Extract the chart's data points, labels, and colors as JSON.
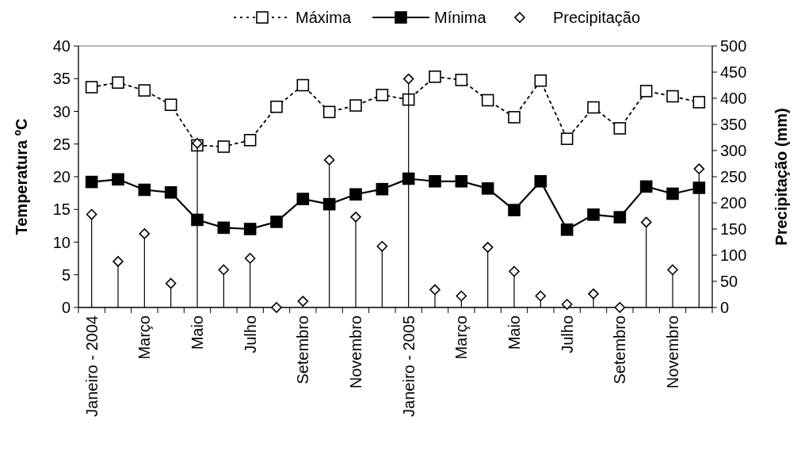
{
  "chart_data": {
    "type": "line",
    "ylabel": "Temperatura ºC",
    "y2label": "Precipitação (mm)",
    "categories": [
      "Janeiro - 2004",
      null,
      "Março",
      null,
      "Maio",
      null,
      "Julho",
      null,
      "Setembro",
      null,
      "Novembro",
      null,
      "Janeiro - 2005",
      null,
      "Março",
      null,
      "Maio",
      null,
      "Julho",
      null,
      "Setembro",
      null,
      "Novembro",
      null
    ],
    "series": [
      {
        "name": "Máxima",
        "color": "#000000",
        "marker": "square",
        "line_style": "dotted",
        "values": [
          33.7,
          34.4,
          33.2,
          31.0,
          24.8,
          24.6,
          25.6,
          30.7,
          34.0,
          29.9,
          30.9,
          32.5,
          31.8,
          35.3,
          34.8,
          31.7,
          29.1,
          34.7,
          25.8,
          30.6,
          27.4,
          33.1,
          32.3,
          31.4
        ]
      },
      {
        "name": "Mínima",
        "color": "#000000",
        "marker": "square",
        "line_style": "solid",
        "values": [
          19.2,
          19.6,
          18.0,
          17.6,
          13.4,
          12.2,
          12.0,
          13.1,
          16.6,
          15.8,
          17.3,
          18.1,
          19.7,
          19.3,
          19.3,
          18.2,
          14.9,
          19.3,
          11.9,
          14.2,
          13.8,
          18.5,
          17.4,
          18.3
        ]
      },
      {
        "name": "Precipitação",
        "type": "lollipop",
        "axis": "y2",
        "color": "#000000",
        "marker": "diamond",
        "values": [
          178,
          88,
          141,
          46,
          314,
          72,
          94,
          0,
          12,
          282,
          173,
          117,
          437,
          34,
          22,
          115,
          69,
          22,
          6,
          26,
          0,
          163,
          72,
          265
        ]
      }
    ],
    "ylim": [
      0,
      40
    ],
    "yticks": [
      0,
      5,
      10,
      15,
      20,
      25,
      30,
      35,
      40
    ],
    "y2lim": [
      0,
      500
    ],
    "y2ticks": [
      0,
      50,
      100,
      150,
      200,
      250,
      300,
      350,
      400,
      450,
      500
    ],
    "legend": "top"
  }
}
